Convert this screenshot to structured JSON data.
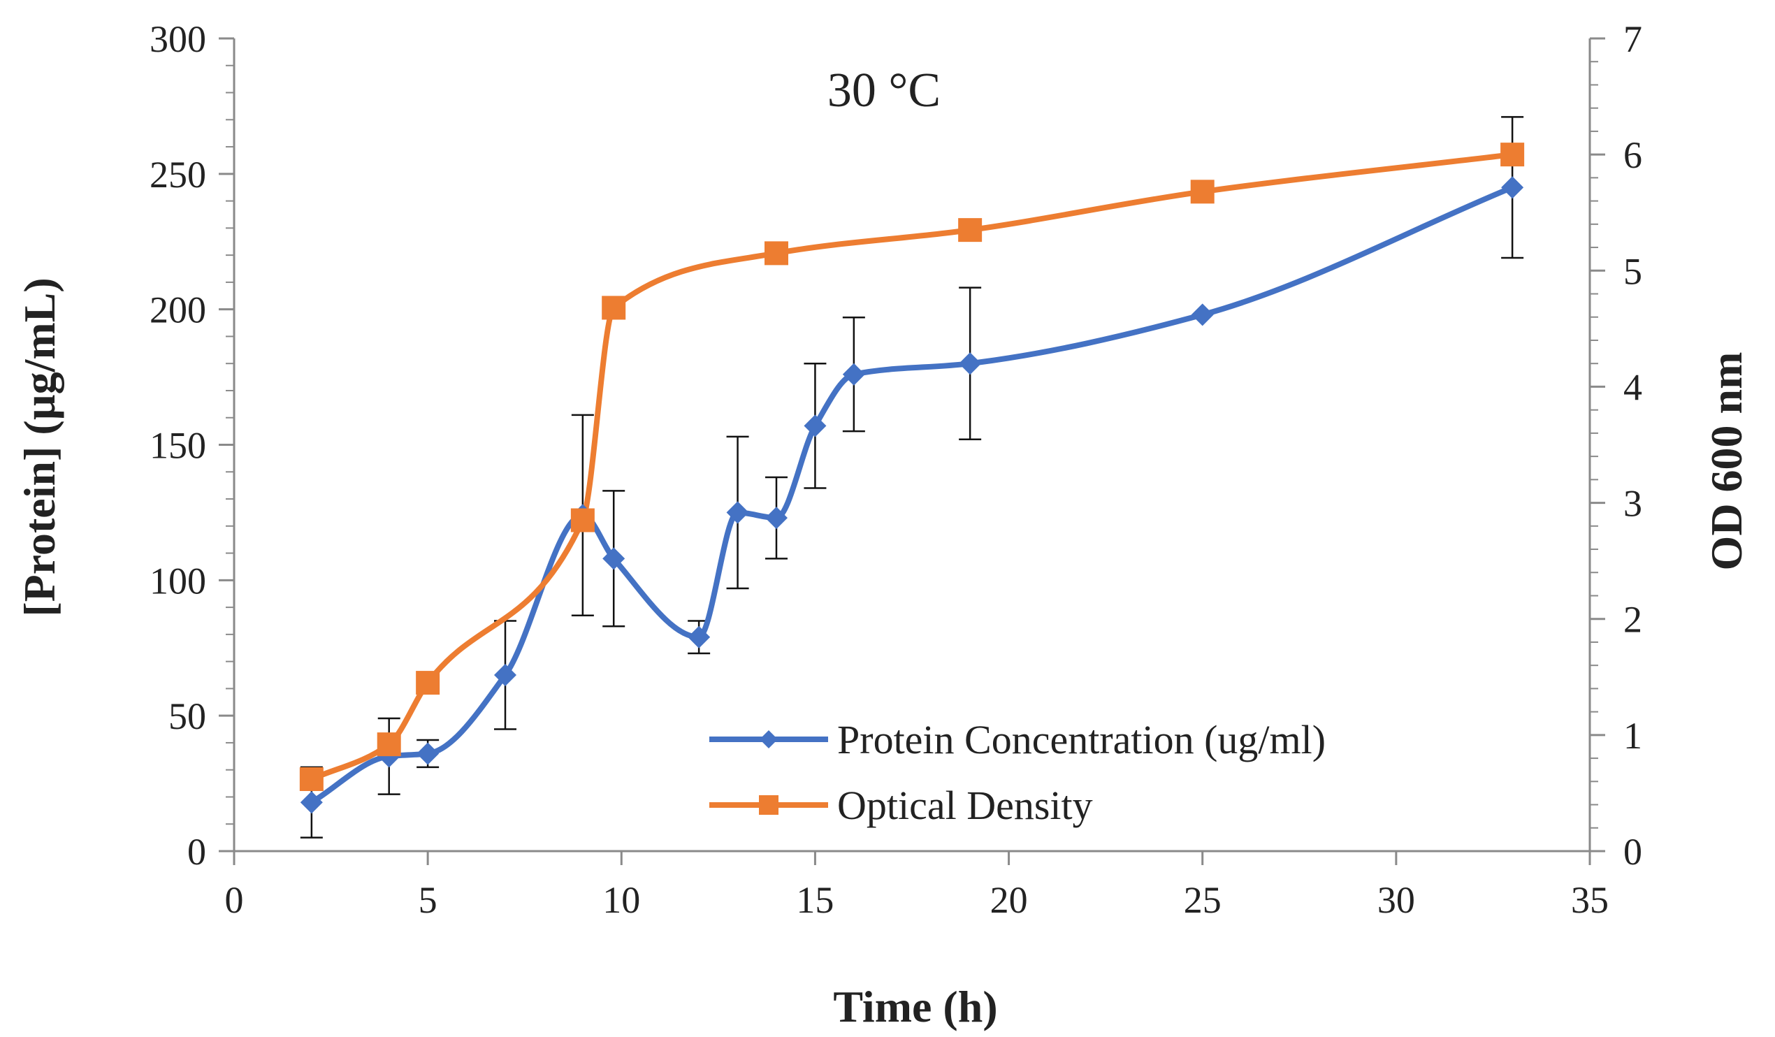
{
  "chart_data": {
    "type": "line",
    "title": "30 °C",
    "xlabel": "Time (h)",
    "ylabel_left": "[Protein] (µg/mL)",
    "ylabel_right": "OD 600 nm",
    "xlim": [
      0,
      35
    ],
    "ylim_left": [
      0,
      300
    ],
    "ylim_right": [
      0,
      7
    ],
    "x_ticks": [
      "0",
      "5",
      "10",
      "15",
      "20",
      "25",
      "30",
      "35"
    ],
    "y_left_ticks": [
      "0",
      "50",
      "100",
      "150",
      "200",
      "250",
      "300"
    ],
    "y_right_ticks": [
      "0",
      "1",
      "2",
      "3",
      "4",
      "5",
      "6",
      "7"
    ],
    "grid": false,
    "legend_placement": "bottom-right",
    "series": [
      {
        "name": "Protein Concentration (ug/ml)",
        "axis": "left",
        "color": "#4472C4",
        "marker": "diamond",
        "x": [
          2,
          4,
          5,
          7,
          9,
          9.8,
          12,
          13,
          14,
          15,
          16,
          19,
          25,
          33
        ],
        "y": [
          18,
          35,
          36,
          65,
          124,
          108,
          79,
          125,
          123,
          157,
          176,
          180,
          198,
          245
        ],
        "error": [
          13,
          14,
          5,
          20,
          37,
          25,
          6,
          28,
          15,
          23,
          21,
          28,
          0,
          26
        ]
      },
      {
        "name": "Optical Density",
        "axis": "right",
        "color": "#ED7D31",
        "marker": "square",
        "x": [
          2,
          4,
          5,
          9,
          9.8,
          14,
          19,
          25,
          33
        ],
        "y": [
          0.62,
          0.92,
          1.45,
          2.85,
          4.68,
          5.15,
          5.35,
          5.68,
          6.0
        ],
        "error": [
          0,
          0,
          0,
          0,
          0,
          0,
          0,
          0,
          0
        ]
      }
    ]
  }
}
